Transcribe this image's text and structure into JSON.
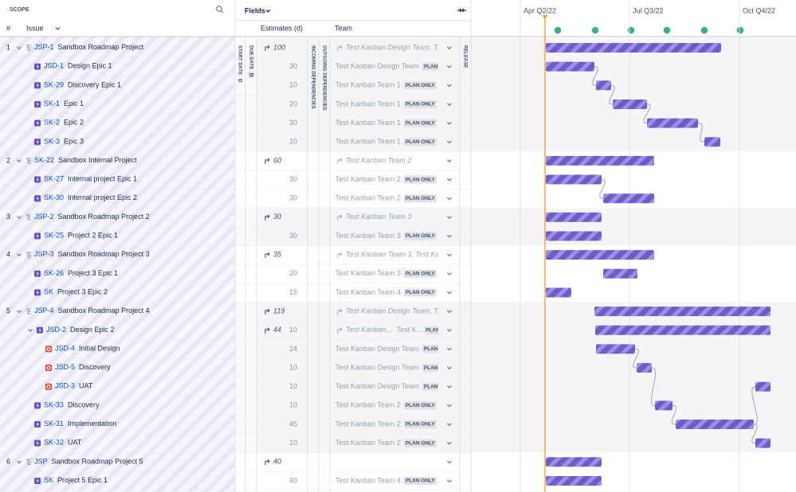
{
  "scope_header": {
    "title": "SCOPE",
    "number_header": "#",
    "issue_header": "Issue"
  },
  "fields": {
    "label": "Fields",
    "start_date": "START DATE",
    "start_date_marker": "D",
    "due_date": "DUE DATE",
    "due_date_marker": "D",
    "estimates": "Estimates (d)",
    "incoming": "INCOMING DEPENDENCIES",
    "outgoing": "OUTGOING DEPENDENCIES",
    "team": "Team",
    "release": "RELEASE"
  },
  "timeline": {
    "quarters": [
      "Apr Q2/22",
      "Jul Q3/22",
      "Oct Q4/22"
    ]
  },
  "rows": [
    {
      "number": "1",
      "key": "JSP-1",
      "title": "Sandbox Roadmap Project",
      "type": "project",
      "level": 0,
      "expandable": true,
      "estimate_rollup": 100,
      "team": "Test Kanban Design Team, T...",
      "team_rollup": true
    },
    {
      "key": "JSD-1",
      "title": "Design Epic 1",
      "type": "epic",
      "level": 1,
      "estimate": 30,
      "team": "Test Kanban Design Team",
      "plan": "PLAN ONLY"
    },
    {
      "key": "SK-29",
      "title": "Discovery Epic 1",
      "type": "epic",
      "level": 1,
      "estimate": 10,
      "team": "Test Kanban Team 1",
      "plan": "PLAN ONLY"
    },
    {
      "key": "SK-1",
      "title": "Epic 1",
      "type": "epic",
      "level": 1,
      "estimate": 20,
      "team": "Test Kanban Team 1",
      "plan": "PLAN ONLY"
    },
    {
      "key": "SK-2",
      "title": "Epic 2",
      "type": "epic",
      "level": 1,
      "estimate": 30,
      "team": "Test Kanban Team 1",
      "plan": "PLAN ONLY"
    },
    {
      "key": "SK-3",
      "title": "Epic 3",
      "type": "epic",
      "level": 1,
      "estimate": 10,
      "team": "Test Kanban Team 1",
      "plan": "PLAN ONLY"
    },
    {
      "number": "2",
      "key": "SK-22",
      "title": "Sandbox Internal Project",
      "type": "project",
      "level": 0,
      "expandable": true,
      "estimate_rollup": 60,
      "team": "Test Kanban Team 2",
      "team_rollup": true
    },
    {
      "key": "SK-27",
      "title": "Internal project Epic 1",
      "type": "epic",
      "level": 1,
      "estimate": 30,
      "team": "Test Kanban Team 2",
      "plan": "PLAN ONLY"
    },
    {
      "key": "SK-30",
      "title": "Internal project Epic 2",
      "type": "epic",
      "level": 1,
      "estimate": 30,
      "team": "Test Kanban Team 2",
      "plan": "PLAN ONLY"
    },
    {
      "number": "3",
      "key": "JSP-2",
      "title": "Sandbox Roadmap Project 2",
      "type": "project",
      "level": 0,
      "expandable": true,
      "estimate_rollup": 30,
      "team": "Test Kanban Team 3",
      "team_rollup": true
    },
    {
      "key": "SK-25",
      "title": "Project 2 Epic 1",
      "type": "epic",
      "level": 1,
      "estimate": 30,
      "team": "Test Kanban Team 3",
      "plan": "PLAN ONLY"
    },
    {
      "number": "4",
      "key": "JSP-3",
      "title": "Sandbox Roadmap Project 3",
      "type": "project",
      "level": 0,
      "expandable": true,
      "estimate_rollup": 35,
      "team": "Test Kanban Team 3, Test Kan...",
      "team_rollup": true
    },
    {
      "key": "SK-26",
      "title": "Project 3 Epic 1",
      "type": "epic",
      "level": 1,
      "estimate": 20,
      "team": "Test Kanban Team 3",
      "plan": "PLAN ONLY"
    },
    {
      "key": "SK",
      "title": "Project 3 Epic 2",
      "type": "epic",
      "level": 1,
      "estimate": 15,
      "team": "Test Kanban Team 4",
      "plan": "PLAN ONLY"
    },
    {
      "number": "5",
      "key": "JSP-4",
      "title": "Sandbox Roadmap Project 4",
      "type": "project",
      "level": 0,
      "expandable": true,
      "estimate_rollup": 119,
      "team": "Test Kanban Design Team, T...",
      "team_rollup": true
    },
    {
      "key": "JSD-2",
      "title": "Design Epic 2",
      "type": "epic",
      "level": 1,
      "expandable": true,
      "estimate_rollup": 44,
      "estimate": 10,
      "team": "Test Kanban...",
      "team_rollup": true,
      "team_extra": "Test K...",
      "plan": "PLAN ONLY"
    },
    {
      "key": "JSD-4",
      "title": "Initial Design",
      "type": "bug",
      "level": 2,
      "estimate": 24,
      "team": "Test Kanban Design Team",
      "plan": "PLAN ONLY"
    },
    {
      "key": "JSD-5",
      "title": "Discovery",
      "type": "bug",
      "level": 2,
      "estimate": 10,
      "team": "Test Kanban Design Team",
      "plan": "PLAN ONLY"
    },
    {
      "key": "JSD-3",
      "title": "UAT",
      "type": "bug",
      "level": 2,
      "estimate": 10,
      "team": "Test Kanban Design Team",
      "plan": "PLAN ONLY"
    },
    {
      "key": "SK-33",
      "title": "Discovery",
      "type": "epic",
      "level": 1,
      "estimate": 10,
      "team": "Test Kanban Team 2",
      "plan": "PLAN ONLY"
    },
    {
      "key": "SK-31",
      "title": "Implementation",
      "type": "epic",
      "level": 1,
      "estimate": 45,
      "team": "Test Kanban Team 2",
      "plan": "PLAN ONLY"
    },
    {
      "key": "SK-32",
      "title": "UAT",
      "type": "epic",
      "level": 1,
      "estimate": 10,
      "team": "Test Kanban Team 2",
      "plan": "PLAN ONLY"
    },
    {
      "number": "6",
      "key": "JSP",
      "title": "Sandbox Roadmap Project 5",
      "type": "project",
      "level": 0,
      "expandable": true,
      "estimate_rollup": 40
    },
    {
      "key": "SK",
      "title": "Project 5 Epic 1",
      "type": "epic",
      "level": 1,
      "estimate": 40,
      "team": "Test Kanban Team 4",
      "plan": "PLAN ONLY"
    }
  ]
}
